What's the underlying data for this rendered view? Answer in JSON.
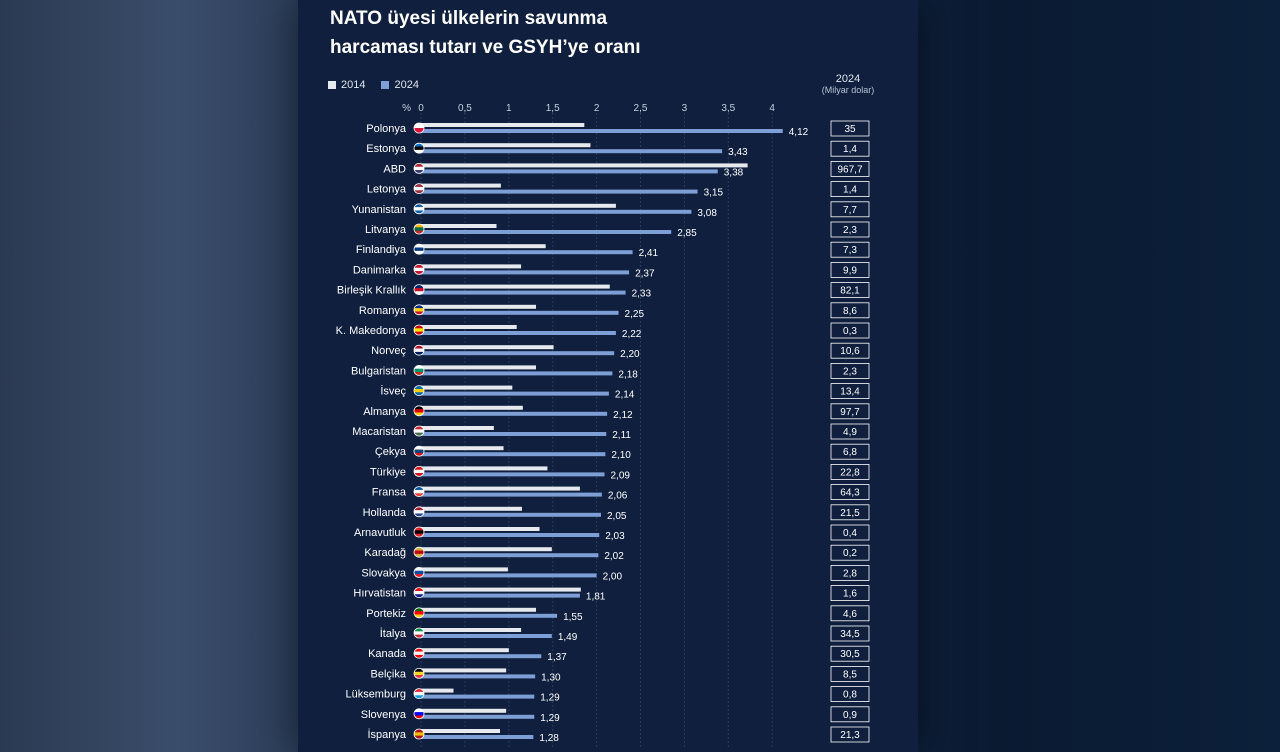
{
  "title_line1": "NATO üyesi ülkelerin savunma",
  "title_line2": "harcaması tutarı ve GSYH’ye oranı",
  "right_header": {
    "year": "2024",
    "unit": "(Milyar dolar)"
  },
  "colors": {
    "y2014": "#e6e9ee",
    "y2024": "#7d9fd6",
    "background": "#0f1f3d",
    "text": "#ffffff"
  },
  "chart_data": {
    "type": "bar",
    "orientation": "horizontal",
    "x_unit_label": "%",
    "xticks": [
      "0",
      "0,5",
      "1",
      "1,5",
      "2",
      "2,5",
      "3",
      "3,5",
      "4"
    ],
    "xlim": [
      0,
      4.2
    ],
    "grid": true,
    "legend": "top-left",
    "categories": [
      "Polonya",
      "Estonya",
      "ABD",
      "Letonya",
      "Yunanistan",
      "Litvanya",
      "Finlandiya",
      "Danimarka",
      "Birleşik Krallık",
      "Romanya",
      "K. Makedonya",
      "Norveç",
      "Bulgaristan",
      "İsveç",
      "Almanya",
      "Macaristan",
      "Çekya",
      "Türkiye",
      "Fransa",
      "Hollanda",
      "Arnavutluk",
      "Karadağ",
      "Slovakya",
      "Hırvatistan",
      "Portekiz",
      "İtalya",
      "Kanada",
      "Belçika",
      "Lüksemburg",
      "Slovenya",
      "İspanya"
    ],
    "series": [
      {
        "name": "2014",
        "values": [
          1.86,
          1.93,
          3.72,
          0.91,
          2.22,
          0.86,
          1.42,
          1.14,
          2.15,
          1.31,
          1.09,
          1.51,
          1.31,
          1.04,
          1.16,
          0.83,
          0.94,
          1.44,
          1.81,
          1.15,
          1.35,
          1.49,
          0.99,
          1.82,
          1.31,
          1.14,
          1.0,
          0.97,
          0.37,
          0.97,
          0.9
        ]
      },
      {
        "name": "2024",
        "values": [
          4.12,
          3.43,
          3.38,
          3.15,
          3.08,
          2.85,
          2.41,
          2.37,
          2.33,
          2.25,
          2.22,
          2.2,
          2.18,
          2.14,
          2.12,
          2.11,
          2.1,
          2.09,
          2.06,
          2.05,
          2.03,
          2.02,
          2.0,
          1.81,
          1.55,
          1.49,
          1.37,
          1.3,
          1.29,
          1.29,
          1.28
        ]
      }
    ],
    "value_labels_2024": [
      "4,12",
      "3,43",
      "3,38",
      "3,15",
      "3,08",
      "2,85",
      "2,41",
      "2,37",
      "2,33",
      "2,25",
      "2,22",
      "2,20",
      "2,18",
      "2,14",
      "2,12",
      "2,11",
      "2,10",
      "2,09",
      "2,06",
      "2,05",
      "2,03",
      "2,02",
      "2,00",
      "1,81",
      "1,55",
      "1,49",
      "1,37",
      "1,30",
      "1,29",
      "1,29",
      "1,28"
    ],
    "spending_2024_billion_usd": [
      "35",
      "1,4",
      "967,7",
      "1,4",
      "7,7",
      "2,3",
      "7,3",
      "9,9",
      "82,1",
      "8,6",
      "0,3",
      "10,6",
      "2,3",
      "13,4",
      "97,7",
      "4,9",
      "6,8",
      "22,8",
      "64,3",
      "21,5",
      "0,4",
      "0,2",
      "2,8",
      "1,6",
      "4,6",
      "34,5",
      "30,5",
      "8,5",
      "0,8",
      "0,9",
      "21,3"
    ],
    "flag_colors": [
      [
        "#ffffff",
        "#dc143c"
      ],
      [
        "#0072ce",
        "#000000",
        "#ffffff"
      ],
      [
        "#b22234",
        "#ffffff",
        "#3c3b6e"
      ],
      [
        "#9e3039",
        "#ffffff",
        "#9e3039"
      ],
      [
        "#0d5eaf",
        "#ffffff",
        "#0d5eaf"
      ],
      [
        "#fdb913",
        "#006a44",
        "#c1272d"
      ],
      [
        "#ffffff",
        "#003580",
        "#ffffff"
      ],
      [
        "#c8102e",
        "#ffffff",
        "#c8102e"
      ],
      [
        "#012169",
        "#c8102e",
        "#ffffff"
      ],
      [
        "#002b7f",
        "#fcd116",
        "#ce1126"
      ],
      [
        "#d20000",
        "#ffe600",
        "#d20000"
      ],
      [
        "#ba0c2f",
        "#ffffff",
        "#00205b"
      ],
      [
        "#ffffff",
        "#00966e",
        "#d62612"
      ],
      [
        "#006aa7",
        "#fecc00",
        "#006aa7"
      ],
      [
        "#000000",
        "#dd0000",
        "#ffce00"
      ],
      [
        "#ce2939",
        "#ffffff",
        "#477050"
      ],
      [
        "#ffffff",
        "#11457e",
        "#d7141a"
      ],
      [
        "#e30a17",
        "#ffffff",
        "#e30a17"
      ],
      [
        "#0055a4",
        "#ffffff",
        "#ef4135"
      ],
      [
        "#ae1c28",
        "#ffffff",
        "#21468b"
      ],
      [
        "#e41e20",
        "#000000",
        "#e41e20"
      ],
      [
        "#d4af37",
        "#c40308",
        "#d4af37"
      ],
      [
        "#ffffff",
        "#0b4ea2",
        "#ee1c25"
      ],
      [
        "#ff0000",
        "#ffffff",
        "#171796"
      ],
      [
        "#006600",
        "#ff0000",
        "#ffcc00"
      ],
      [
        "#009246",
        "#ffffff",
        "#ce2b37"
      ],
      [
        "#ff0000",
        "#ffffff",
        "#ff0000"
      ],
      [
        "#000000",
        "#fdda24",
        "#ef3340"
      ],
      [
        "#ed2939",
        "#ffffff",
        "#00a1de"
      ],
      [
        "#ffffff",
        "#0000ff",
        "#ff0000"
      ],
      [
        "#aa151b",
        "#f1bf00",
        "#aa151b"
      ]
    ]
  }
}
